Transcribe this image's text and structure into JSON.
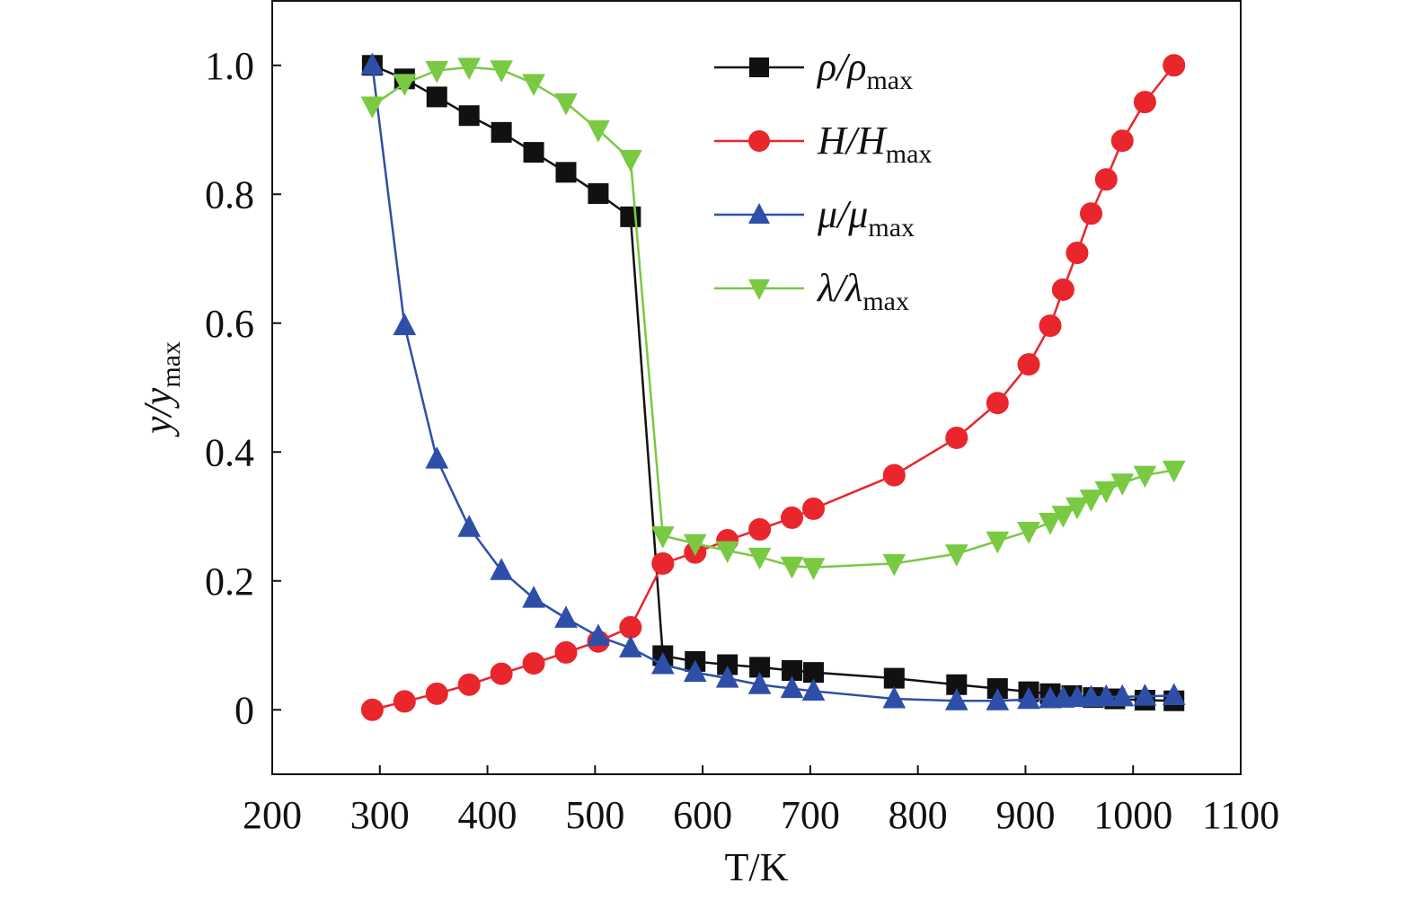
{
  "chart_data": {
    "type": "line",
    "x_label": "T/K",
    "y_label": "y/y",
    "y_label_sub": "max",
    "xlim": [
      200,
      1100
    ],
    "xticks": [
      200,
      300,
      400,
      500,
      600,
      700,
      800,
      900,
      1000,
      1100
    ],
    "ylim": [
      -0.1,
      1.1
    ],
    "yticks": [
      0,
      0.2,
      0.4,
      0.6,
      0.8,
      {
        "value": 1,
        "label": "1.0"
      }
    ],
    "legend": "upper right",
    "series": [
      {
        "name": "ρ/ρ",
        "name_sub": "max",
        "color": "#111111",
        "marker": "square",
        "x": [
          293,
          323,
          353,
          383,
          413,
          443,
          473,
          503,
          533,
          563,
          593,
          623,
          653,
          683,
          703,
          778,
          836,
          874,
          903,
          923,
          943,
          963,
          983,
          1011,
          1038
        ],
        "values": [
          1.0,
          0.979,
          0.951,
          0.922,
          0.896,
          0.865,
          0.834,
          0.801,
          0.765,
          0.084,
          0.075,
          0.07,
          0.066,
          0.061,
          0.058,
          0.049,
          0.039,
          0.033,
          0.028,
          0.025,
          0.022,
          0.019,
          0.017,
          0.015,
          0.014
        ]
      },
      {
        "name": "H/H",
        "name_sub": "max",
        "color": "#e8262c",
        "marker": "circle",
        "x": [
          293,
          323,
          353,
          383,
          413,
          443,
          473,
          503,
          533,
          563,
          593,
          623,
          653,
          683,
          703,
          778,
          836,
          874,
          903,
          923,
          935,
          948,
          961,
          975,
          990,
          1011,
          1038
        ],
        "values": [
          0,
          0.013,
          0.025,
          0.039,
          0.056,
          0.072,
          0.089,
          0.106,
          0.128,
          0.227,
          0.244,
          0.263,
          0.28,
          0.298,
          0.312,
          0.364,
          0.422,
          0.476,
          0.536,
          0.596,
          0.652,
          0.709,
          0.77,
          0.823,
          0.883,
          0.943,
          1.0
        ]
      },
      {
        "name": "μ/μ",
        "name_sub": "max",
        "color": "#2e4fa8",
        "marker": "triangle-up",
        "x": [
          293,
          323,
          353,
          383,
          413,
          443,
          473,
          503,
          533,
          563,
          593,
          623,
          653,
          683,
          703,
          778,
          836,
          874,
          903,
          923,
          935,
          948,
          961,
          975,
          990,
          1011,
          1038
        ],
        "values": [
          1.0,
          0.596,
          0.389,
          0.283,
          0.216,
          0.173,
          0.142,
          0.114,
          0.096,
          0.07,
          0.058,
          0.049,
          0.039,
          0.033,
          0.029,
          0.017,
          0.014,
          0.014,
          0.016,
          0.017,
          0.018,
          0.019,
          0.019,
          0.02,
          0.02,
          0.021,
          0.022
        ]
      },
      {
        "name": "λ/λ",
        "name_sub": "max",
        "color": "#7ac943",
        "marker": "triangle-down",
        "x": [
          293,
          323,
          353,
          383,
          413,
          443,
          473,
          503,
          533,
          563,
          593,
          623,
          653,
          683,
          703,
          778,
          836,
          874,
          903,
          923,
          935,
          948,
          961,
          975,
          990,
          1011,
          1038
        ],
        "values": [
          0.937,
          0.972,
          0.992,
          0.997,
          0.993,
          0.972,
          0.942,
          0.9,
          0.854,
          0.27,
          0.258,
          0.247,
          0.237,
          0.223,
          0.221,
          0.227,
          0.242,
          0.262,
          0.277,
          0.291,
          0.302,
          0.315,
          0.327,
          0.34,
          0.352,
          0.364,
          0.372
        ]
      }
    ]
  }
}
